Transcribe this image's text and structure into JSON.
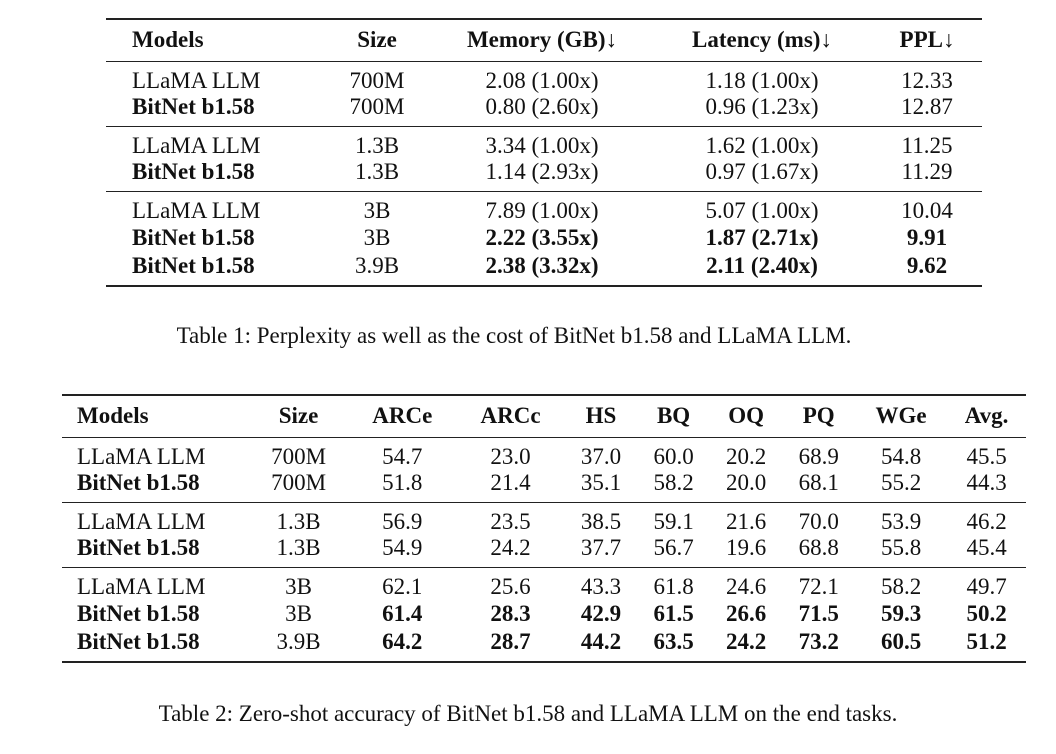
{
  "table1": {
    "headers": [
      "Models",
      "Size",
      "Memory (GB)↓",
      "Latency (ms)↓",
      "PPL↓"
    ],
    "groups": [
      [
        {
          "model": "LLaMA LLM",
          "size": "700M",
          "memory": "2.08 (1.00x)",
          "latency": "1.18 (1.00x)",
          "ppl": "12.33"
        },
        {
          "model": "BitNet b1.58",
          "size": "700M",
          "memory": "0.80 (2.60x)",
          "latency": "0.96 (1.23x)",
          "ppl": "12.87"
        }
      ],
      [
        {
          "model": "LLaMA LLM",
          "size": "1.3B",
          "memory": "3.34 (1.00x)",
          "latency": "1.62 (1.00x)",
          "ppl": "11.25"
        },
        {
          "model": "BitNet b1.58",
          "size": "1.3B",
          "memory": "1.14 (2.93x)",
          "latency": "0.97 (1.67x)",
          "ppl": "11.29"
        }
      ],
      [
        {
          "model": "LLaMA LLM",
          "size": "3B",
          "memory": "7.89 (1.00x)",
          "latency": "5.07 (1.00x)",
          "ppl": "10.04"
        },
        {
          "model": "BitNet b1.58",
          "size": "3B",
          "memory": "2.22 (3.55x)",
          "latency": "1.87 (2.71x)",
          "ppl": "9.91"
        },
        {
          "model": "BitNet b1.58",
          "size": "3.9B",
          "memory": "2.38 (3.32x)",
          "latency": "2.11 (2.40x)",
          "ppl": "9.62"
        }
      ]
    ],
    "caption": "Table 1: Perplexity as well as the cost of BitNet b1.58 and LLaMA LLM."
  },
  "table2": {
    "headers": [
      "Models",
      "Size",
      "ARCe",
      "ARCc",
      "HS",
      "BQ",
      "OQ",
      "PQ",
      "WGe",
      "Avg."
    ],
    "groups": [
      [
        [
          "LLaMA LLM",
          "700M",
          "54.7",
          "23.0",
          "37.0",
          "60.0",
          "20.2",
          "68.9",
          "54.8",
          "45.5"
        ],
        [
          "BitNet b1.58",
          "700M",
          "51.8",
          "21.4",
          "35.1",
          "58.2",
          "20.0",
          "68.1",
          "55.2",
          "44.3"
        ]
      ],
      [
        [
          "LLaMA LLM",
          "1.3B",
          "56.9",
          "23.5",
          "38.5",
          "59.1",
          "21.6",
          "70.0",
          "53.9",
          "46.2"
        ],
        [
          "BitNet b1.58",
          "1.3B",
          "54.9",
          "24.2",
          "37.7",
          "56.7",
          "19.6",
          "68.8",
          "55.8",
          "45.4"
        ]
      ],
      [
        [
          "LLaMA LLM",
          "3B",
          "62.1",
          "25.6",
          "43.3",
          "61.8",
          "24.6",
          "72.1",
          "58.2",
          "49.7"
        ],
        [
          "BitNet b1.58",
          "3B",
          "61.4",
          "28.3",
          "42.9",
          "61.5",
          "26.6",
          "71.5",
          "59.3",
          "50.2"
        ],
        [
          "BitNet b1.58",
          "3.9B",
          "64.2",
          "28.7",
          "44.2",
          "63.5",
          "24.2",
          "73.2",
          "60.5",
          "51.2"
        ]
      ]
    ],
    "caption": "Table 2: Zero-shot accuracy of BitNet b1.58 and LLaMA LLM on the end tasks."
  }
}
